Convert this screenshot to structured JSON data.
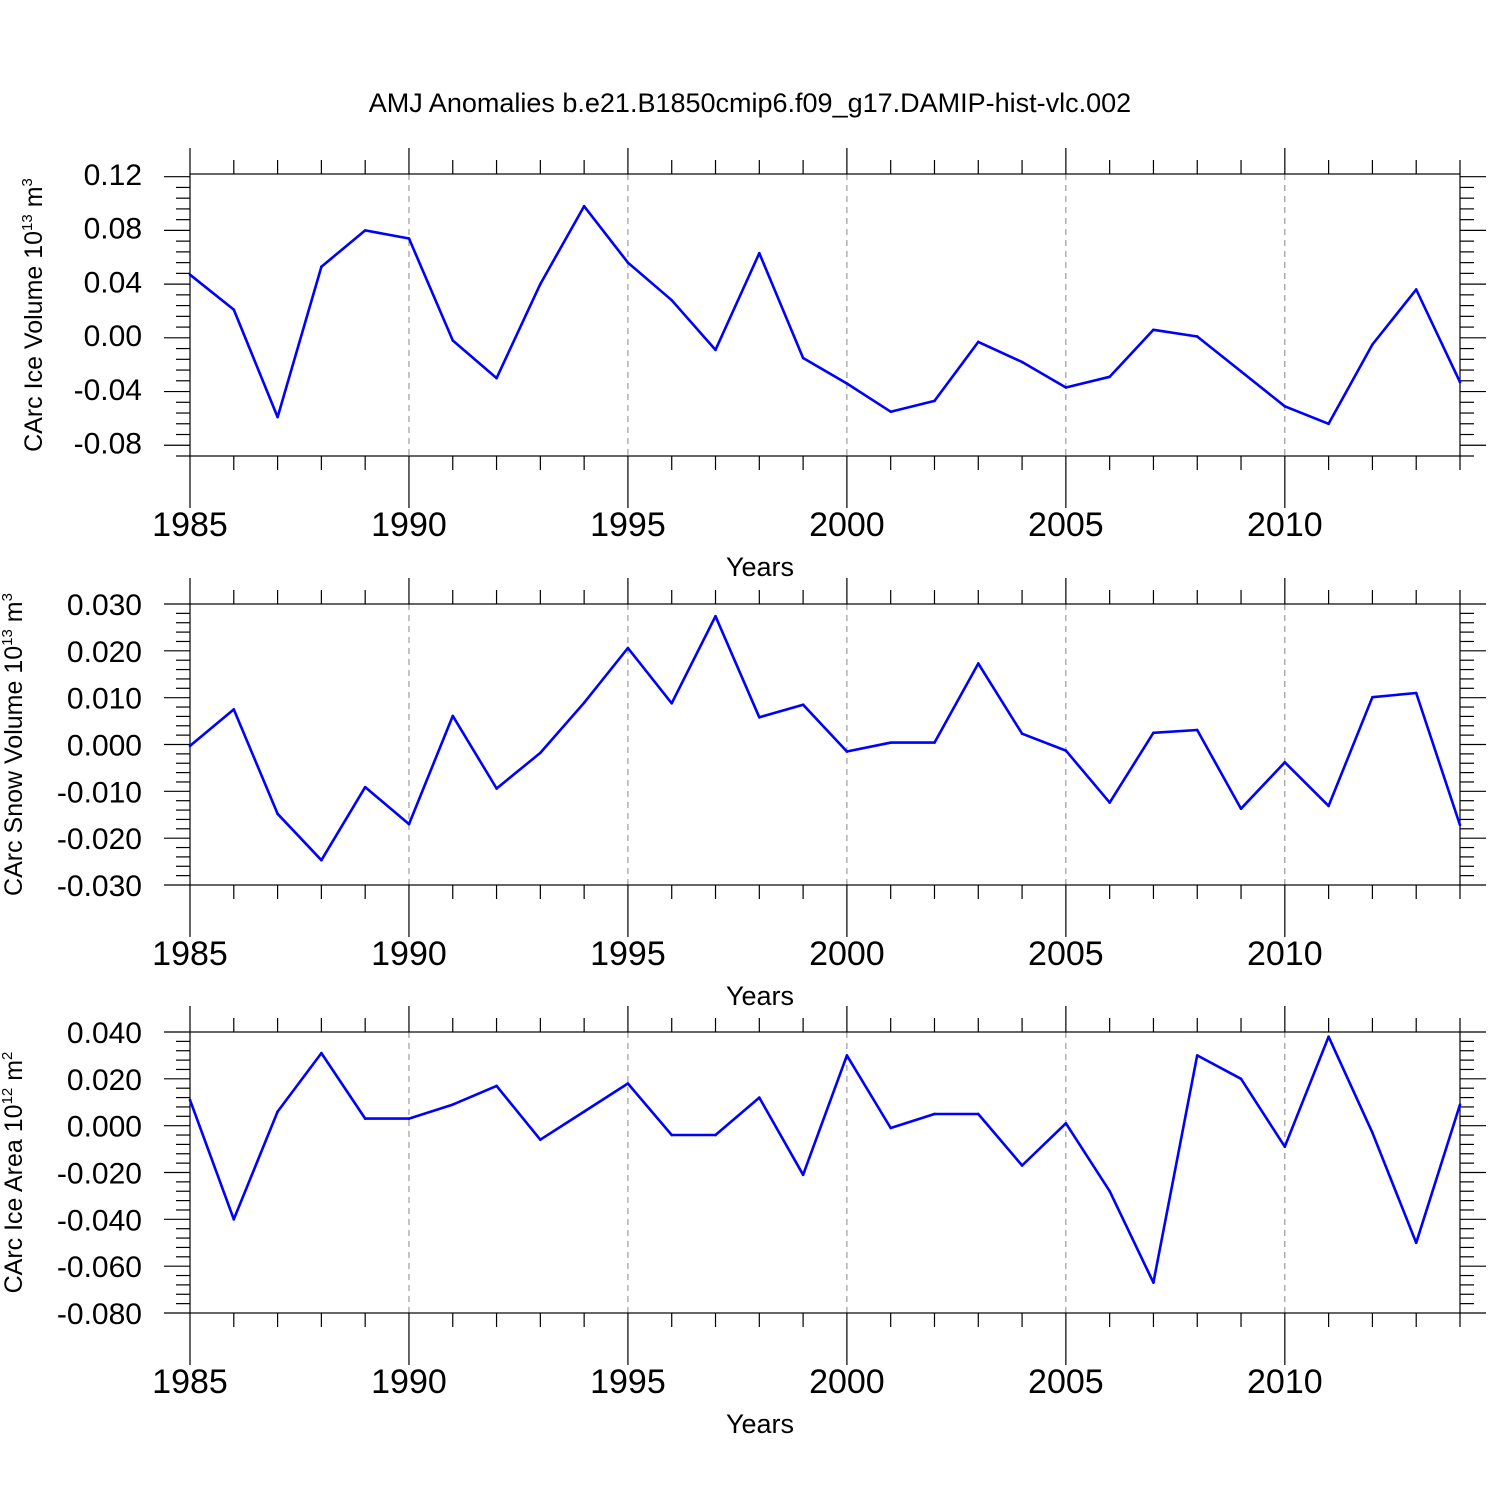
{
  "figure_title": "AMJ Anomalies b.e21.B1850cmip6.f09_g17.DAMIP-hist-vlc.002",
  "line_color": "#0000ff",
  "chart_data": [
    {
      "type": "line",
      "name": "ice-volume",
      "ylabel": "CArc Ice Volume",
      "yunit_base": "10",
      "yunit_exp": "13",
      "yunit_tail": " m",
      "yunit_tail_exp": "3",
      "xlabel": "Years",
      "xlim": [
        1985,
        2014
      ],
      "ylim": [
        -0.09,
        0.12
      ],
      "yticks": [
        0.12,
        0.08,
        0.04,
        0.0,
        -0.04,
        -0.08
      ],
      "ytick_labels": [
        "0.12",
        "0.08",
        "0.04",
        "0.00",
        "-0.04",
        "-0.08"
      ],
      "xticks": [
        1985,
        1990,
        1995,
        2000,
        2005,
        2010
      ],
      "xtick_labels": [
        "1985",
        "1990",
        "1995",
        "2000",
        "2005",
        "2010"
      ],
      "x": [
        1985,
        1986,
        1987,
        1988,
        1989,
        1990,
        1991,
        1992,
        1993,
        1994,
        1995,
        1996,
        1997,
        1998,
        1999,
        2000,
        2001,
        2002,
        2003,
        2004,
        2005,
        2006,
        2007,
        2008,
        2009,
        2010,
        2011,
        2012,
        2013,
        2014
      ],
      "values": [
        0.045,
        0.019,
        -0.061,
        0.051,
        0.078,
        0.072,
        -0.004,
        -0.032,
        0.038,
        0.096,
        0.054,
        0.026,
        -0.011,
        0.061,
        -0.017,
        -0.036,
        -0.057,
        -0.049,
        -0.005,
        -0.02,
        -0.039,
        -0.031,
        0.004,
        -0.001,
        -0.027,
        -0.053,
        -0.066,
        -0.007,
        0.034,
        -0.035
      ]
    },
    {
      "type": "line",
      "name": "snow-volume",
      "ylabel": "CArc Snow Volume",
      "yunit_base": "10",
      "yunit_exp": "13",
      "yunit_tail": " m",
      "yunit_tail_exp": "3",
      "xlabel": "Years",
      "xlim": [
        1985,
        2014
      ],
      "ylim": [
        -0.03,
        0.03
      ],
      "yticks": [
        0.03,
        0.02,
        0.01,
        0.0,
        -0.01,
        -0.02,
        -0.03
      ],
      "ytick_labels": [
        "0.030",
        "0.020",
        "0.010",
        "0.000",
        "-0.010",
        "-0.020",
        "-0.030"
      ],
      "xticks": [
        1985,
        1990,
        1995,
        2000,
        2005,
        2010
      ],
      "xtick_labels": [
        "1985",
        "1990",
        "1995",
        "2000",
        "2005",
        "2010"
      ],
      "x": [
        1985,
        1986,
        1987,
        1988,
        1989,
        1990,
        1991,
        1992,
        1993,
        1994,
        1995,
        1996,
        1997,
        1998,
        1999,
        2000,
        2001,
        2002,
        2003,
        2004,
        2005,
        2006,
        2007,
        2008,
        2009,
        2010,
        2011,
        2012,
        2013,
        2014
      ],
      "values": [
        -0.0003,
        0.0075,
        -0.0148,
        -0.0247,
        -0.0091,
        -0.017,
        0.0061,
        -0.0094,
        -0.0018,
        0.0089,
        0.0206,
        0.0088,
        0.0274,
        0.0058,
        0.0085,
        -0.0015,
        0.0004,
        0.0004,
        0.0173,
        0.0023,
        -0.0013,
        -0.0124,
        0.0025,
        0.0031,
        -0.0137,
        -0.0038,
        -0.0131,
        0.0101,
        0.011,
        -0.0172
      ]
    },
    {
      "type": "line",
      "name": "ice-area",
      "ylabel": "CArc Ice Area",
      "yunit_base": "10",
      "yunit_exp": "12",
      "yunit_tail": " m",
      "yunit_tail_exp": "2",
      "xlabel": "Years",
      "xlim": [
        1985,
        2014
      ],
      "ylim": [
        -0.08,
        0.04
      ],
      "yticks": [
        0.04,
        0.02,
        0.0,
        -0.02,
        -0.04,
        -0.06,
        -0.08
      ],
      "ytick_labels": [
        "0.040",
        "0.020",
        "0.000",
        "-0.020",
        "-0.040",
        "-0.060",
        "-0.080"
      ],
      "xticks": [
        1985,
        1990,
        1995,
        2000,
        2005,
        2010
      ],
      "xtick_labels": [
        "1985",
        "1990",
        "1995",
        "2000",
        "2005",
        "2010"
      ],
      "x": [
        1985,
        1986,
        1987,
        1988,
        1989,
        1990,
        1991,
        1992,
        1993,
        1994,
        1995,
        1996,
        1997,
        1998,
        1999,
        2000,
        2001,
        2002,
        2003,
        2004,
        2005,
        2006,
        2007,
        2008,
        2009,
        2010,
        2011,
        2012,
        2013,
        2014
      ],
      "values": [
        0.011,
        -0.04,
        0.006,
        0.031,
        0.003,
        0.003,
        0.009,
        0.017,
        -0.006,
        0.006,
        0.018,
        -0.004,
        -0.004,
        0.012,
        -0.021,
        0.03,
        -0.001,
        0.005,
        0.005,
        -0.017,
        0.001,
        -0.028,
        -0.067,
        0.03,
        0.02,
        -0.009,
        0.038,
        -0.003,
        -0.05,
        0.009
      ]
    }
  ]
}
